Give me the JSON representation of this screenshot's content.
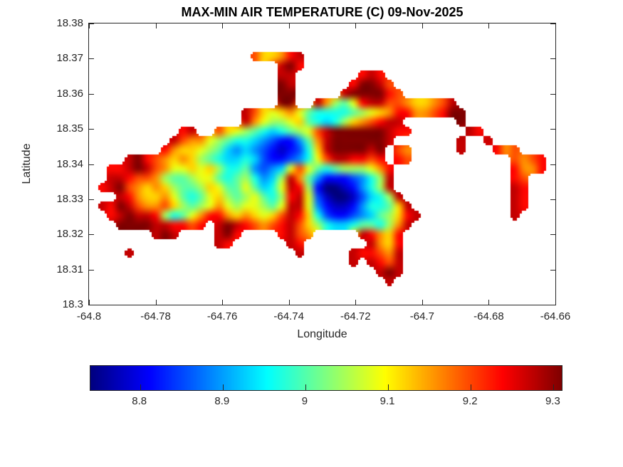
{
  "chart_data": {
    "type": "heatmap",
    "title": "MAX-MIN AIR TEMPERATURE (C) 09-Nov-2025",
    "xlabel": "Longitude",
    "ylabel": "Latitude",
    "xlim": [
      -64.8,
      -64.66
    ],
    "ylim": [
      18.3,
      18.38
    ],
    "xticks": [
      -64.8,
      -64.78,
      -64.76,
      -64.74,
      -64.72,
      -64.7,
      -64.68,
      -64.66
    ],
    "xtick_labels": [
      "-64.8",
      "-64.78",
      "-64.76",
      "-64.74",
      "-64.72",
      "-64.7",
      "-64.68",
      "-64.66"
    ],
    "yticks": [
      18.3,
      18.31,
      18.32,
      18.33,
      18.34,
      18.35,
      18.36,
      18.37,
      18.38
    ],
    "ytick_labels": [
      "18.3",
      "18.31",
      "18.32",
      "18.33",
      "18.34",
      "18.35",
      "18.36",
      "18.37",
      "18.38"
    ],
    "grid_on": false,
    "legend": "none",
    "colormap": "jet",
    "colorbar": {
      "orientation": "horizontal",
      "range": [
        8.74,
        9.31
      ],
      "ticks": [
        8.8,
        8.9,
        9,
        9.1,
        9.2,
        9.3
      ],
      "tick_labels": [
        "8.8",
        "8.9",
        "9",
        "9.1",
        "9.2",
        "9.3"
      ]
    },
    "field": {
      "value_min": 8.74,
      "value_max": 9.31,
      "encoding": "each character is one grid cell, row-major from north-west corner; '.' = ocean/no-data; hex digit 0-f = level index; temperature value = value_min + level/15 * (value_max - value_min)",
      "ncols": 52,
      "nrows": 30,
      "rows": [
        "....................................................",
        "....................................................",
        "....................................................",
        "..................caabde............................",
        ".....................efd............................",
        ".....................ee.......ded...................",
        ".....................fe......dffec..................",
        ".....................ff.....effffdc.................",
        ".....................ff..eb879deeccbaabce...........",
        ".................eca9ab976666789abddbbcdff..........",
        ".................eb9889a76568abcdee......f..........",
        "..........de..ca987656789ceffffffedd......ed........",
        ".........ecbb987665432247beffffffe.......e..e.......",
        "........dbaa9875454321236aeffffef.cb.....e...dbc....",
        "....efdcbaba87655653223469ceeddcd.dc...........cbcd.",
        "..ddefecb99a9a866743459c97678889bd.............dbbd.",
        "..eedccb87789976786458eb742223468e.............dc...",
        ".defcbaba8778a97797569ed820012468e.............ed...",
        "...edbaab97679a8789768de9310013568e............ed...",
        ".edfecbbca8789b9899879ee9421124667ae...........ed...",
        "..defeed8679bddbaba9aceda632234578ade..........e....",
        "...ffffeeddcd.efedcbcdeca865567768be................",
        ".......efe....efd....decb.....edbad.................",
        "..............ed......ed.......ebad.................",
        "....e..................e.....eddcbe.................",
        ".............................e.edce.................",
        "................................efe.................",
        ".................................e..................",
        "....................................................",
        "...................................................."
      ]
    }
  },
  "colors": {
    "background": "#ffffff",
    "axis": "#262626",
    "text": "#262626",
    "title": "#000000"
  }
}
